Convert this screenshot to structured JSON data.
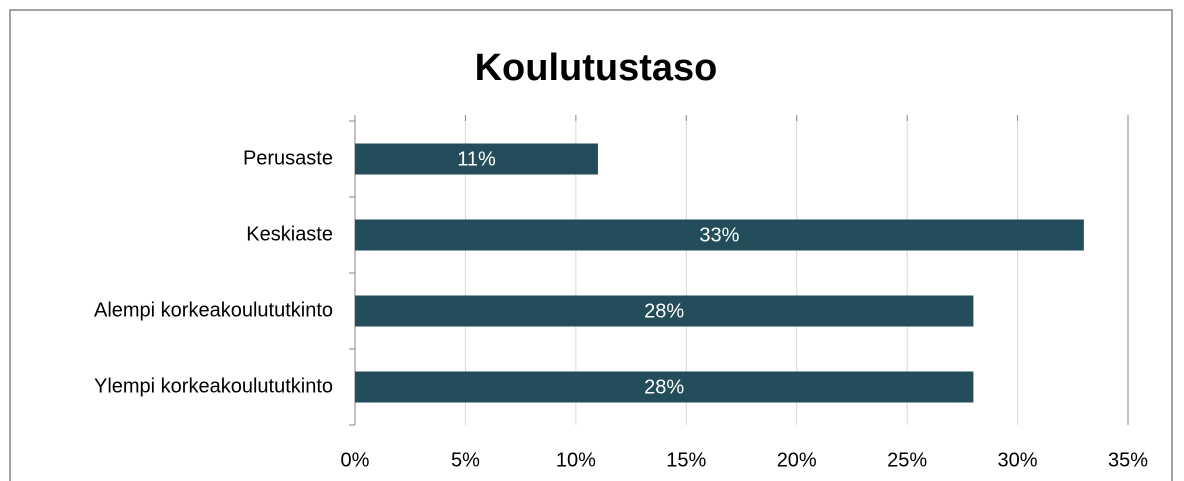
{
  "chart_data": {
    "type": "bar",
    "horizontal": true,
    "title": "Koulutustaso",
    "categories": [
      "Perusaste",
      "Keskiaste",
      "Alempi korkeakoulututkinto",
      "Ylempi korkeakoulututkinto"
    ],
    "values": [
      11,
      33,
      28,
      28
    ],
    "value_labels": [
      "11%",
      "33%",
      "28%",
      "28%"
    ],
    "color": "#234d5a",
    "xlim": [
      0,
      35
    ],
    "xticks": [
      {
        "value": 0,
        "label": "0%"
      },
      {
        "value": 5,
        "label": "5%"
      },
      {
        "value": 10,
        "label": "10%"
      },
      {
        "value": 15,
        "label": "15%"
      },
      {
        "value": 20,
        "label": "20%"
      },
      {
        "value": 25,
        "label": "25%"
      },
      {
        "value": 30,
        "label": "30%"
      },
      {
        "value": 35,
        "label": "35%"
      }
    ],
    "grid": true
  }
}
